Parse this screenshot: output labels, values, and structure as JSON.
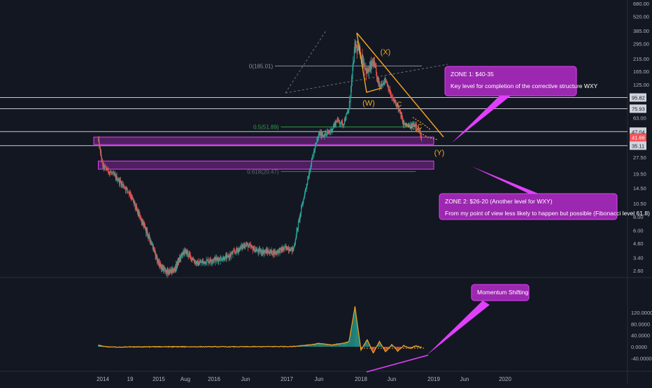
{
  "chart_data": [
    {
      "type": "candlestick",
      "panel": "price",
      "y_scale": "log",
      "ylim": [
        2.3,
        700
      ],
      "x_range": [
        "2013-11",
        "2020-03"
      ],
      "x_ticks": [
        {
          "date": "2014-01",
          "label": "2014"
        },
        {
          "date": "2014-05",
          "label": "19"
        },
        {
          "date": "2015-01",
          "label": "2015"
        },
        {
          "date": "2015-08",
          "label": "Aug"
        },
        {
          "date": "2016-01",
          "label": "2016"
        },
        {
          "date": "2016-06",
          "label": "Jun"
        },
        {
          "date": "2017-01",
          "label": "2017"
        },
        {
          "date": "2017-06",
          "label": "Jun"
        },
        {
          "date": "2018-01",
          "label": "2018"
        },
        {
          "date": "2018-06",
          "label": "Jun"
        },
        {
          "date": "2019-01",
          "label": "2019"
        },
        {
          "date": "2019-06",
          "label": "Jun"
        },
        {
          "date": "2020-01",
          "label": "2020"
        }
      ],
      "y_ticks": [
        {
          "value": 680,
          "label": "680.00"
        },
        {
          "value": 520,
          "label": "520.00"
        },
        {
          "value": 385,
          "label": "385.00"
        },
        {
          "value": 295,
          "label": "295.00"
        },
        {
          "value": 215,
          "label": "215.00"
        },
        {
          "value": 165,
          "label": "165.00"
        },
        {
          "value": 125,
          "label": "125.00"
        },
        {
          "value": 63,
          "label": "63.00"
        },
        {
          "value": 27.5,
          "label": "27.50"
        },
        {
          "value": 19.5,
          "label": "19.50"
        },
        {
          "value": 14.5,
          "label": "14.50"
        },
        {
          "value": 10.5,
          "label": "10.50"
        },
        {
          "value": 8.0,
          "label": "8.00"
        },
        {
          "value": 6.0,
          "label": "6.00"
        },
        {
          "value": 4.6,
          "label": "4.60"
        },
        {
          "value": 3.4,
          "label": "3.40"
        },
        {
          "value": 2.6,
          "label": "2.60"
        }
      ],
      "price_badges": [
        {
          "value": 95.82,
          "label": "95.82",
          "color": "#d1d4dc"
        },
        {
          "value": 75.93,
          "label": "75.93",
          "color": "#d1d4dc"
        },
        {
          "value": 47.04,
          "label": "47.04",
          "color": "#d1d4dc"
        },
        {
          "value": 41.66,
          "label": "41.66",
          "color": "#f2565e"
        },
        {
          "value": 35.11,
          "label": "35.11",
          "color": "#d1d4dc"
        }
      ],
      "horizontal_lines": [
        95.82,
        75.93,
        47.04,
        35.11
      ],
      "fib_levels": [
        {
          "value": 185.01,
          "label": "0(185.01)",
          "color": "#8c8f99",
          "from": "2016-11",
          "to": "2018-11"
        },
        {
          "value": 51.89,
          "label": "0.5(51.89)",
          "color": "#2ea043",
          "from": "2016-12",
          "to": "2018-10"
        },
        {
          "value": 20.47,
          "label": "0.618(20.47)",
          "color": "#666a74",
          "from": "2016-12",
          "to": "2018-10"
        }
      ],
      "zones": [
        {
          "from": "2013-11",
          "to": "2019-01",
          "low": 36,
          "high": 42,
          "color": "#9c27b0"
        },
        {
          "from": "2013-12",
          "to": "2019-01",
          "low": 21.5,
          "high": 25.5,
          "color": "#9c27b0"
        }
      ],
      "wave_labels": [
        {
          "text": "(X)",
          "date": "2018-03",
          "value": 268
        },
        {
          "text": "(W)",
          "date": "2018-01",
          "value": 80
        },
        {
          "text": "(Y)",
          "date": "2018-12",
          "value": 27
        },
        {
          "text": "C",
          "date": "2018-07",
          "value": 80
        },
        {
          "text": "C",
          "date": "2018-10",
          "value": 47
        }
      ],
      "price_series": [
        {
          "date": "2013-11",
          "value": 3.2
        },
        {
          "date": "2013-12",
          "value": 40
        },
        {
          "date": "2014-01",
          "value": 23
        },
        {
          "date": "2014-03",
          "value": 18
        },
        {
          "date": "2014-05",
          "value": 13
        },
        {
          "date": "2014-07",
          "value": 9
        },
        {
          "date": "2014-09",
          "value": 6.5
        },
        {
          "date": "2014-11",
          "value": 4.6
        },
        {
          "date": "2015-01",
          "value": 3.0
        },
        {
          "date": "2015-03",
          "value": 2.5
        },
        {
          "date": "2015-05",
          "value": 2.6
        },
        {
          "date": "2015-07",
          "value": 3.6
        },
        {
          "date": "2015-08",
          "value": 3.9
        },
        {
          "date": "2015-10",
          "value": 3.0
        },
        {
          "date": "2015-12",
          "value": 3.2
        },
        {
          "date": "2016-03",
          "value": 3.4
        },
        {
          "date": "2016-06",
          "value": 4.5
        },
        {
          "date": "2016-08",
          "value": 3.9
        },
        {
          "date": "2016-11",
          "value": 3.8
        },
        {
          "date": "2017-01",
          "value": 4.2
        },
        {
          "date": "2017-02",
          "value": 4.0
        },
        {
          "date": "2017-03",
          "value": 8
        },
        {
          "date": "2017-04",
          "value": 15
        },
        {
          "date": "2017-05",
          "value": 28
        },
        {
          "date": "2017-06",
          "value": 45
        },
        {
          "date": "2017-07",
          "value": 44
        },
        {
          "date": "2017-08",
          "value": 48
        },
        {
          "date": "2017-09",
          "value": 60
        },
        {
          "date": "2017-10",
          "value": 55
        },
        {
          "date": "2017-11",
          "value": 75
        },
        {
          "date": "2017-12",
          "value": 285
        },
        {
          "date": "2018-01",
          "value": 235
        },
        {
          "date": "2018-02",
          "value": 160
        },
        {
          "date": "2018-03",
          "value": 200
        },
        {
          "date": "2018-04",
          "value": 120
        },
        {
          "date": "2018-05",
          "value": 140
        },
        {
          "date": "2018-06",
          "value": 95
        },
        {
          "date": "2018-07",
          "value": 80
        },
        {
          "date": "2018-08",
          "value": 55
        },
        {
          "date": "2018-09",
          "value": 52
        },
        {
          "date": "2018-10",
          "value": 55
        },
        {
          "date": "2018-11",
          "value": 41.66
        }
      ]
    },
    {
      "type": "line",
      "panel": "oscillator",
      "ylim": [
        -48,
        150
      ],
      "y_ticks": [
        {
          "value": 120,
          "label": "120.0000"
        },
        {
          "value": 80,
          "label": "80.0000"
        },
        {
          "value": 40,
          "label": "40.0000"
        },
        {
          "value": 0,
          "label": "0.0000"
        },
        {
          "value": -40,
          "label": "-40.0000"
        }
      ],
      "series": [
        {
          "color": "#f5a623",
          "points": [
            {
              "date": "2013-12",
              "value": 5
            },
            {
              "date": "2014-02",
              "value": -1
            },
            {
              "date": "2015-01",
              "value": 0
            },
            {
              "date": "2016-06",
              "value": 0
            },
            {
              "date": "2017-02",
              "value": 1
            },
            {
              "date": "2017-05",
              "value": 8
            },
            {
              "date": "2017-06",
              "value": 12
            },
            {
              "date": "2017-08",
              "value": 6
            },
            {
              "date": "2017-10",
              "value": 12
            },
            {
              "date": "2017-11",
              "value": 18
            },
            {
              "date": "2017-12",
              "value": 140
            },
            {
              "date": "2018-01",
              "value": -12
            },
            {
              "date": "2018-02",
              "value": 25
            },
            {
              "date": "2018-03",
              "value": -22
            },
            {
              "date": "2018-04",
              "value": 18
            },
            {
              "date": "2018-05",
              "value": -18
            },
            {
              "date": "2018-06",
              "value": 8
            },
            {
              "date": "2018-07",
              "value": -15
            },
            {
              "date": "2018-08",
              "value": 4
            },
            {
              "date": "2018-09",
              "value": -6
            },
            {
              "date": "2018-10",
              "value": 3
            },
            {
              "date": "2018-11",
              "value": -2
            }
          ]
        }
      ]
    }
  ],
  "annotations": {
    "zone1": {
      "title": "ZONE 1:  $40-35",
      "body": "Key level for completion of the corrective structure WXY"
    },
    "zone2": {
      "title": "ZONE 2:  $26-20 (Another level for WXY)",
      "body": "From my point of view less likely to happen but possible (Fibonacci level 61.8)"
    },
    "momentum": {
      "title": "Momentum Shifting"
    }
  },
  "colors": {
    "background": "#131722",
    "grid": "#2a2e39",
    "up_candle": "#26a69a",
    "down_candle": "#ef5350",
    "orange": "#f5a623",
    "magenta": "#e040fb",
    "callout_fill": "#9c27b0"
  }
}
